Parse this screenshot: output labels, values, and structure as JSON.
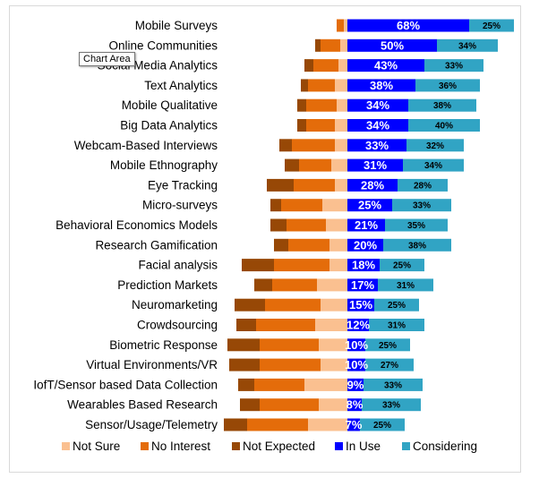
{
  "tooltip": "Chart Area",
  "chart_data": {
    "type": "bar",
    "orientation": "horizontal-diverging",
    "categories": [
      "Mobile Surveys",
      "Online Communities",
      "Social Media Analytics",
      "Text Analytics",
      "Mobile Qualitative",
      "Big Data Analytics",
      "Webcam-Based Interviews",
      "Mobile Ethnography",
      "Eye Tracking",
      "Micro-surveys",
      "Behavioral Economics Models",
      "Research Gamification",
      "Facial analysis",
      "Prediction Markets",
      "Neuromarketing",
      "Crowdsourcing",
      "Biometric Response",
      "Virtual Environments/VR",
      "IofT/Sensor based Data Collection",
      "Wearables Based Research",
      "Sensor/Usage/Telemetry"
    ],
    "series": [
      {
        "name": "Not Sure",
        "color": "#fac090",
        "values": [
          2,
          4,
          5,
          7,
          6,
          7,
          7,
          9,
          7,
          14,
          12,
          10,
          10,
          17,
          15,
          18,
          16,
          15,
          24,
          16,
          22
        ]
      },
      {
        "name": "No Interest",
        "color": "#e46c0a",
        "values": [
          4,
          11,
          14,
          15,
          17,
          16,
          24,
          18,
          23,
          23,
          22,
          23,
          31,
          25,
          31,
          33,
          33,
          34,
          28,
          33,
          34
        ]
      },
      {
        "name": "Not Expected",
        "color": "#974806",
        "values": [
          0,
          3,
          5,
          4,
          5,
          5,
          7,
          8,
          15,
          6,
          9,
          8,
          18,
          10,
          17,
          11,
          18,
          17,
          9,
          11,
          13
        ]
      },
      {
        "name": "In Use",
        "color": "#0000ff",
        "values": [
          68,
          50,
          43,
          38,
          34,
          34,
          33,
          31,
          28,
          25,
          21,
          20,
          18,
          17,
          15,
          12,
          10,
          10,
          9,
          8,
          7
        ]
      },
      {
        "name": "Considering",
        "color": "#31a4c4",
        "values": [
          25,
          34,
          33,
          36,
          38,
          40,
          32,
          34,
          28,
          33,
          35,
          38,
          25,
          31,
          25,
          31,
          25,
          27,
          33,
          33,
          25
        ]
      }
    ],
    "in_use_labels": [
      "68%",
      "50%",
      "43%",
      "38%",
      "34%",
      "34%",
      "33%",
      "31%",
      "28%",
      "25%",
      "21%",
      "20%",
      "18%",
      "17%",
      "15%",
      "12%",
      "10%",
      "10%",
      "9%",
      "8%",
      "7%"
    ],
    "considering_labels": [
      "25%",
      "34%",
      "33%",
      "36%",
      "38%",
      "40%",
      "32%",
      "34%",
      "28%",
      "33%",
      "35%",
      "38%",
      "25%",
      "31%",
      "25%",
      "31%",
      "25%",
      "27%",
      "33%",
      "33%",
      "25%"
    ],
    "legend": [
      "Not Sure",
      "No Interest",
      "Not Expected",
      "In Use",
      "Considering"
    ],
    "legend_position": "bottom",
    "grid": false
  }
}
